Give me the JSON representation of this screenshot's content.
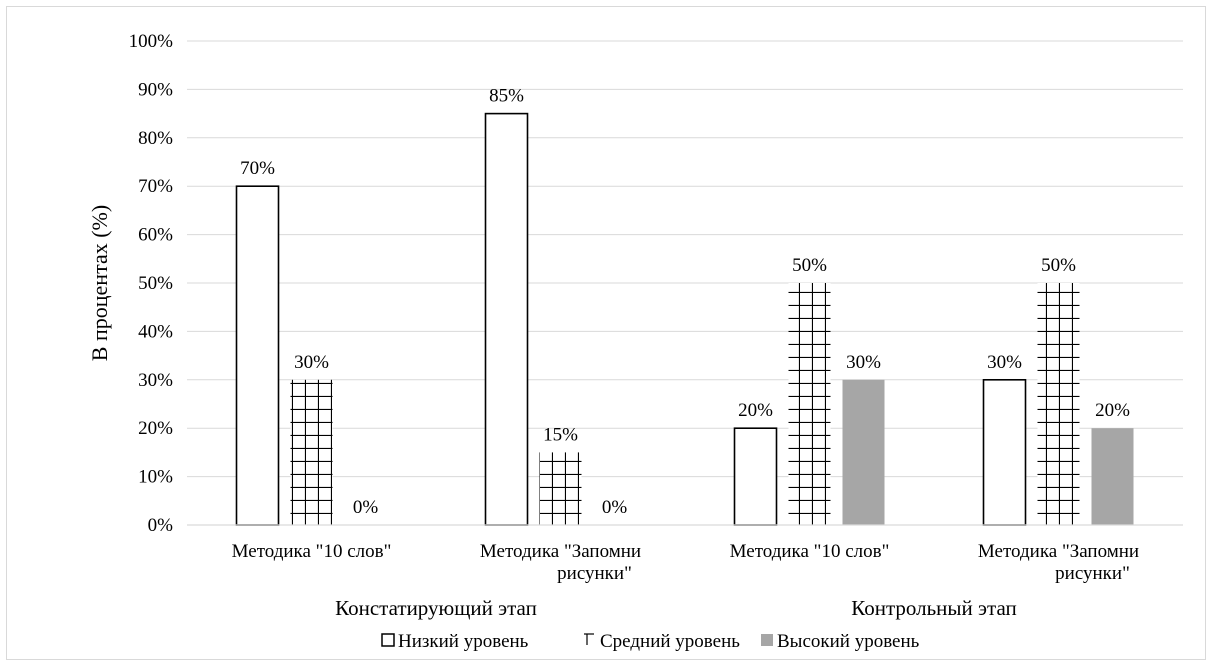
{
  "chart_data": {
    "type": "bar",
    "ylabel": "В процентах (%)",
    "ylim": [
      0,
      100
    ],
    "yticks": [
      "0%",
      "10%",
      "20%",
      "30%",
      "40%",
      "50%",
      "60%",
      "70%",
      "80%",
      "90%",
      "100%"
    ],
    "grid": true,
    "legend_position": "bottom",
    "groups": [
      {
        "label": "Констатирующий этап",
        "categories": [
          "Методика \"10 слов\"",
          "Методика \"Запомни рисунки\""
        ]
      },
      {
        "label": "Контрольный этап",
        "categories": [
          "Методика \"10 слов\"",
          "Методика \"Запомни рисунки\""
        ]
      }
    ],
    "categories": [
      [
        "Методика \"10 слов\""
      ],
      [
        "Методика \"Запомни",
        "рисунки\""
      ],
      [
        "Методика \"10 слов\""
      ],
      [
        "Методика \"Запомни",
        "рисунки\""
      ]
    ],
    "series": [
      {
        "name": "Низкий уровень",
        "values": [
          70,
          85,
          20,
          30
        ],
        "labels": [
          "70%",
          "85%",
          "20%",
          "30%"
        ],
        "style": "outline"
      },
      {
        "name": "Средний уровень",
        "values": [
          30,
          15,
          50,
          50
        ],
        "labels": [
          "30%",
          "15%",
          "50%",
          "50%"
        ],
        "style": "grid-pattern"
      },
      {
        "name": "Высокий уровень",
        "values": [
          0,
          0,
          30,
          20
        ],
        "labels": [
          "0%",
          "0%",
          "30%",
          "20%"
        ],
        "style": "solid"
      }
    ],
    "colors": {
      "high_fill": "#a6a6a6",
      "grid_line": "#d9d9d9",
      "outline": "#000000"
    }
  }
}
